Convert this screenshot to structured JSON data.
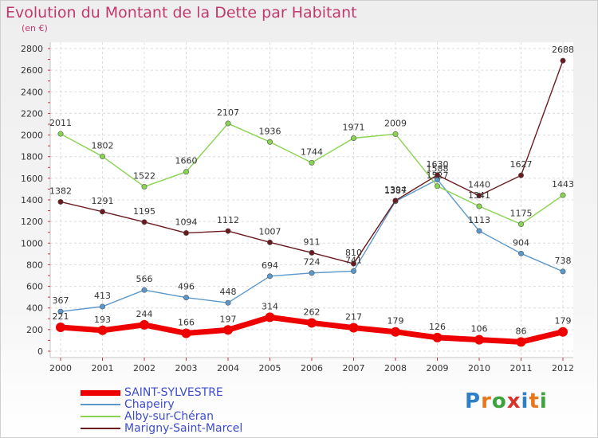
{
  "header": {
    "title": "Evolution du Montant de la Dette par Habitant",
    "unit": "(en €)"
  },
  "logo": {
    "text": "Proxiti",
    "colors": [
      "#2d7fc6",
      "#e8761d",
      "#3aa33a",
      "#d8322a",
      "#2d7fc6",
      "#e8761d",
      "#3aa33a"
    ]
  },
  "chart_data": {
    "type": "line",
    "x": [
      "2000",
      "2001",
      "2002",
      "2003",
      "2004",
      "2005",
      "2006",
      "2007",
      "2008",
      "2009",
      "2010",
      "2011",
      "2012"
    ],
    "ylim": [
      0,
      2800
    ],
    "yticks": [
      "0",
      "200",
      "400",
      "600",
      "800",
      "1000",
      "1200",
      "1400",
      "1600",
      "1800",
      "2000",
      "2200",
      "2400",
      "2600",
      "2800"
    ],
    "grid": true,
    "legend_position": "bottom-left",
    "series": [
      {
        "name": "SAINT-SYLVESTRE",
        "color": "#ee0000",
        "values": [
          221,
          193,
          244,
          166,
          197,
          314,
          262,
          217,
          179,
          126,
          106,
          86,
          179
        ],
        "labels": [
          "221",
          "193",
          "244",
          "166",
          "197",
          "314",
          "262",
          "217",
          "179",
          "126",
          "106",
          "86",
          "179"
        ]
      },
      {
        "name": "Chapeiry",
        "color": "#5a98cc",
        "values": [
          367,
          413,
          566,
          496,
          448,
          694,
          724,
          741,
          1387,
          1588,
          1113,
          904,
          738
        ],
        "labels": [
          "367",
          "413",
          "566",
          "496",
          "448",
          "694",
          "724",
          "741",
          "1387",
          "1588",
          "1113",
          "904",
          "738"
        ]
      },
      {
        "name": "Alby-sur-Chéran",
        "color": "#88d44e",
        "values": [
          2011,
          1802,
          1522,
          1660,
          2107,
          1936,
          1744,
          1971,
          2009,
          1527,
          1341,
          1175,
          1443
        ],
        "labels": [
          "2011",
          "1802",
          "1522",
          "1660",
          "2107",
          "1936",
          "1744",
          "1971",
          "2009",
          "1527",
          "1341",
          "1175",
          "1443"
        ]
      },
      {
        "name": "Marigny-Saint-Marcel",
        "color": "#6a1a1f",
        "values": [
          1382,
          1291,
          1195,
          1094,
          1112,
          1007,
          911,
          810,
          1394,
          1630,
          1440,
          1627,
          2688
        ],
        "labels": [
          "1382",
          "1291",
          "1195",
          "1094",
          "1112",
          "1007",
          "911",
          "810",
          "1394",
          "1630",
          "1440",
          "1627",
          "2688"
        ]
      }
    ]
  }
}
